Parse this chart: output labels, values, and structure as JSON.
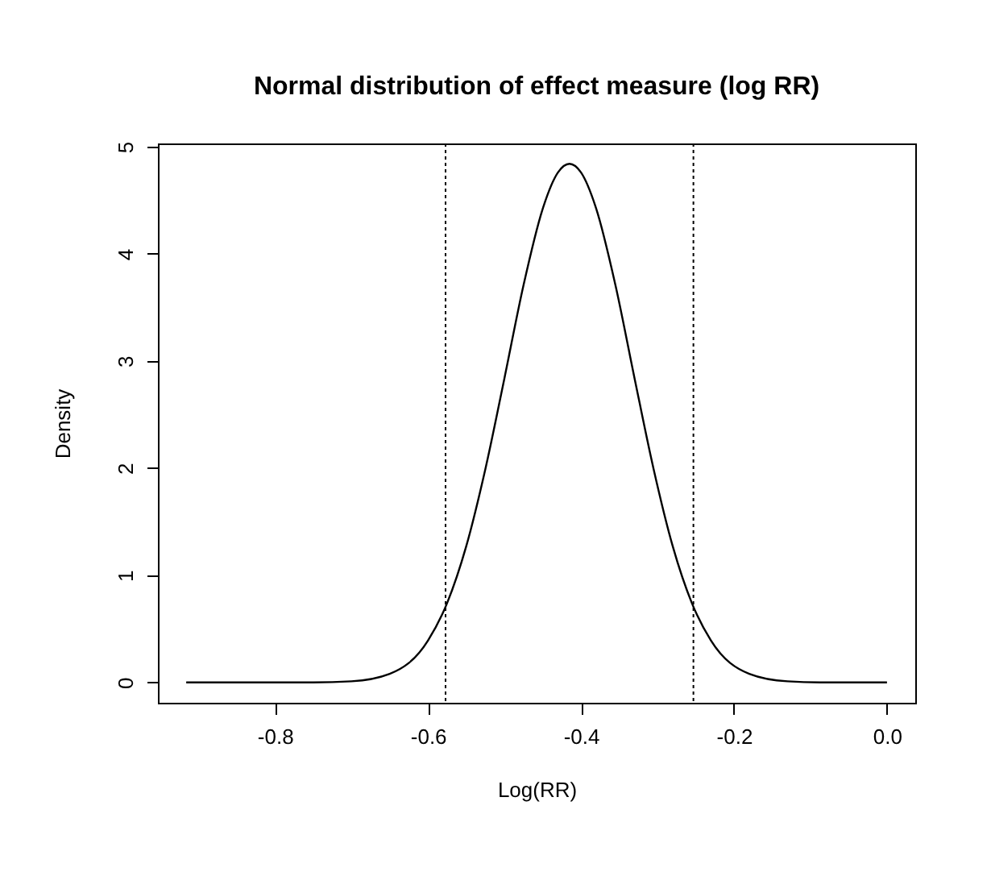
{
  "chart_data": {
    "type": "line",
    "title": "Normal distribution of effect measure (log RR)",
    "xlabel": "Log(RR)",
    "ylabel": "Density",
    "x": [
      -0.916,
      -0.8,
      -0.75,
      -0.7,
      -0.65,
      -0.6,
      -0.575,
      -0.55,
      -0.525,
      -0.5,
      -0.475,
      -0.45,
      -0.43,
      -0.415,
      -0.4,
      -0.38,
      -0.355,
      -0.33,
      -0.305,
      -0.28,
      -0.255,
      -0.23,
      -0.18,
      -0.13,
      -0.08,
      0
    ],
    "series": [
      {
        "color": "#000000",
        "values": [
          0,
          0,
          0,
          0.01,
          0.08,
          0.39,
          0.74,
          1.27,
          1.99,
          2.84,
          3.71,
          4.42,
          4.76,
          4.84,
          4.76,
          4.42,
          3.71,
          2.84,
          1.99,
          1.27,
          0.74,
          0.39,
          0.08,
          0.01,
          0,
          0
        ]
      }
    ],
    "xlim": [
      -0.953,
      0.037
    ],
    "ylim": [
      -0.19,
      5.03
    ],
    "xticks": [
      {
        "value": -0.8,
        "label": "-0.8"
      },
      {
        "value": -0.6,
        "label": "-0.6"
      },
      {
        "value": -0.4,
        "label": "-0.4"
      },
      {
        "value": -0.2,
        "label": "-0.2"
      },
      {
        "value": 0,
        "label": "0.0"
      }
    ],
    "yticks": [
      0,
      1,
      2,
      3,
      4,
      5
    ],
    "ref_lines": [
      {
        "axis": "x",
        "value": -0.577,
        "line_style": "dotted",
        "color": "#000000"
      },
      {
        "axis": "x",
        "value": -0.253,
        "line_style": "dotted",
        "color": "#000000"
      }
    ],
    "line_style": "solid",
    "marker": "none"
  }
}
